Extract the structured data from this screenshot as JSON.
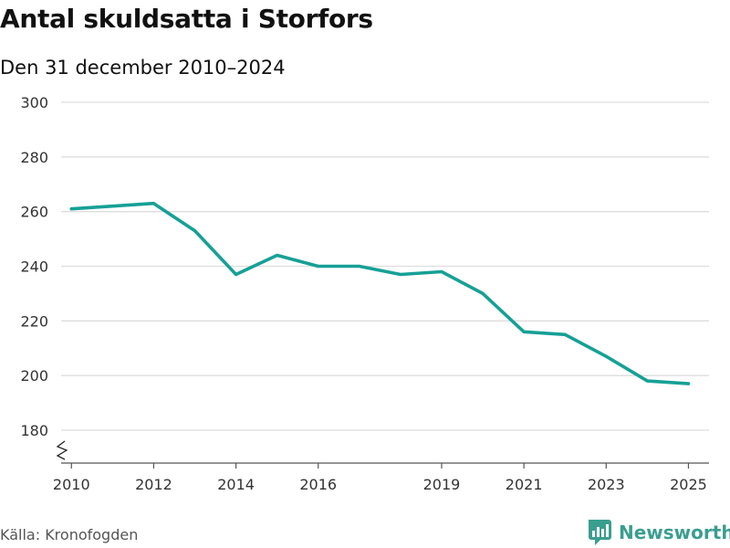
{
  "header": {
    "title": "Antal skuldsatta i Storfors",
    "subtitle": "Den 31 december 2010–2024"
  },
  "footer": {
    "source": "Källa: Kronofogden",
    "brand": "Newsworthy"
  },
  "colors": {
    "line": "#16a096",
    "grid": "#dddddd",
    "axis": "#555555",
    "brand": "#3a9e8f"
  },
  "chart_data": {
    "type": "line",
    "title": "Antal skuldsatta i Storfors",
    "subtitle": "Den 31 december 2010–2024",
    "xlabel": "",
    "ylabel": "",
    "xlim": [
      2009.75,
      2025.5
    ],
    "ylim": [
      180,
      300
    ],
    "y_axis_break": true,
    "grid": true,
    "x_ticks": [
      2010,
      2012,
      2014,
      2016,
      2019,
      2021,
      2023,
      2025
    ],
    "y_ticks": [
      180,
      200,
      220,
      240,
      260,
      280,
      300
    ],
    "series": [
      {
        "name": "Antal skuldsatta",
        "x": [
          2010,
          2011,
          2012,
          2013,
          2014,
          2015,
          2016,
          2017,
          2018,
          2019,
          2020,
          2021,
          2022,
          2023,
          2024,
          2025
        ],
        "values": [
          261,
          262,
          263,
          253,
          237,
          244,
          240,
          240,
          237,
          238,
          230,
          216,
          215,
          207,
          198,
          197
        ]
      }
    ]
  }
}
